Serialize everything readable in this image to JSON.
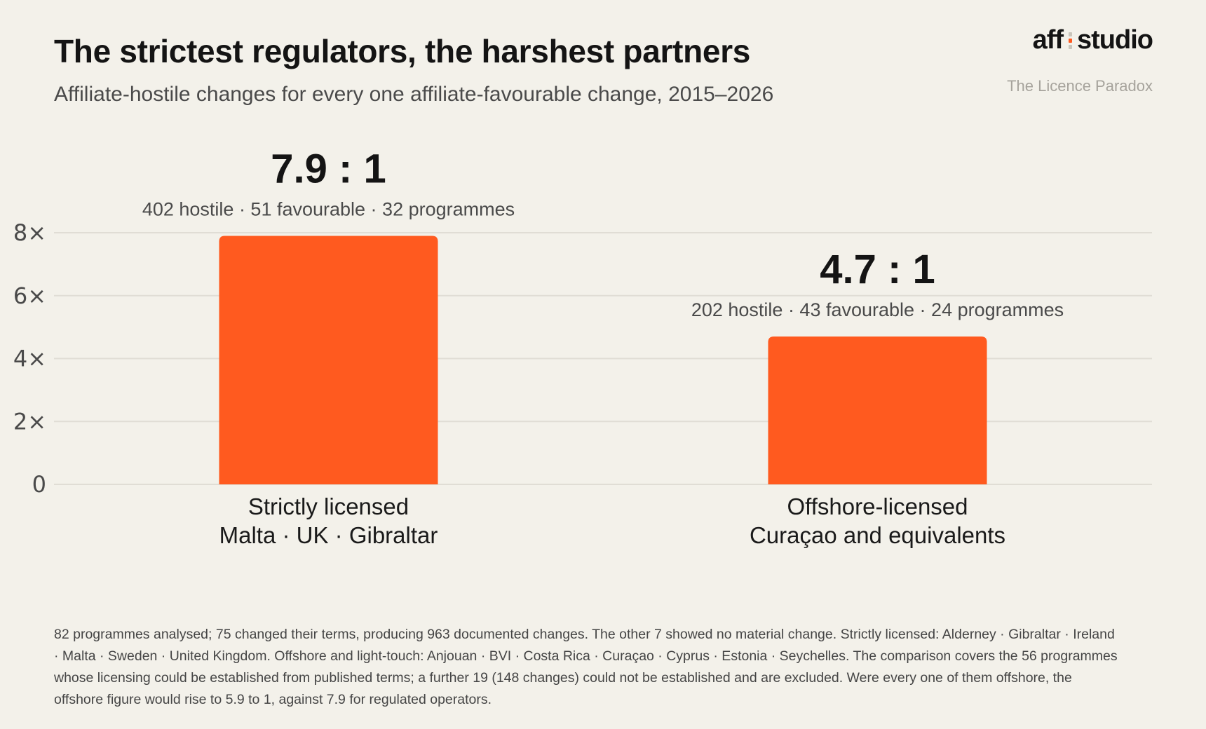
{
  "header": {
    "title": "The strictest regulators, the harshest partners",
    "subtitle": "Affiliate-hostile changes for every one affiliate-favourable change, 2015–2026",
    "brand_left": "aff",
    "brand_right": "studio",
    "series_tag": "The Licence Paradox"
  },
  "colors": {
    "bar": "#ff5a1f",
    "grid": "#e0ddd5",
    "axis_text": "#4a4a4a",
    "background": "#f3f1ea"
  },
  "chart_data": {
    "type": "bar",
    "title": "The strictest regulators, the harshest partners",
    "subtitle": "Affiliate-hostile changes for every one affiliate-favourable change, 2015–2026",
    "categories": [
      {
        "line1": "Strictly licensed",
        "line2": "Malta · UK · Gibraltar"
      },
      {
        "line1": "Offshore-licensed",
        "line2": "Curaçao and equivalents"
      }
    ],
    "values": [
      7.9,
      4.7
    ],
    "value_labels": [
      "7.9 : 1",
      "4.7 : 1"
    ],
    "sub_labels": [
      "402 hostile · 51 favourable · 32 programmes",
      "202 hostile · 43 favourable · 24 programmes"
    ],
    "yticks": [
      0,
      2,
      4,
      6,
      8
    ],
    "ytick_labels": [
      "0",
      "2×",
      "4×",
      "6×",
      "8×"
    ],
    "ylim": [
      0,
      8
    ],
    "grid": true,
    "legend": "none"
  },
  "footnote": "82 programmes analysed; 75 changed their terms, producing 963 documented changes. The other 7 showed no material change.  Strictly licensed: Alderney · Gibraltar · Ireland · Malta · Sweden · United Kingdom. Offshore and light-touch: Anjouan · BVI · Costa Rica · Curaçao · Cyprus · Estonia · Seychelles.  The comparison covers the 56 programmes whose licensing could be established from published terms; a further 19 (148 changes) could not be established and are excluded. Were every one of them offshore, the offshore figure would rise to 5.9 to 1, against 7.9 for regulated operators."
}
